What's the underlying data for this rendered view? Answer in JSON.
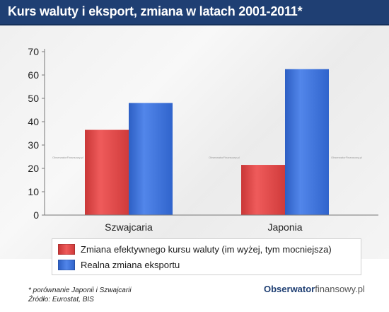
{
  "header": {
    "title": "Kurs waluty i eksport, zmiana w latach 2001-2011*"
  },
  "chart_data": {
    "type": "bar",
    "categories": [
      "Szwajcaria",
      "Japonia"
    ],
    "series": [
      {
        "name": "Zmiana efektywnego kursu waluty (im wyżej, tym mocniejsza)",
        "values": [
          36.5,
          21.5
        ],
        "color": "#e24a4a"
      },
      {
        "name": "Realna zmiana eksportu",
        "values": [
          48,
          62.5
        ],
        "color": "#3c6fd6"
      }
    ],
    "ylim": [
      0,
      70
    ],
    "yticks": [
      0,
      10,
      20,
      30,
      40,
      50,
      60,
      70
    ],
    "grid": false,
    "legend_placement": "bottom",
    "watermark": "ObserwatorFinansowy.pl"
  },
  "footnotes": {
    "note": "* porównanie Japonii i Szwajcarii",
    "source": "Źródło: Eurostat, BIS"
  },
  "brand": {
    "part1": "Obserwator",
    "part2": "finansowy.pl"
  }
}
